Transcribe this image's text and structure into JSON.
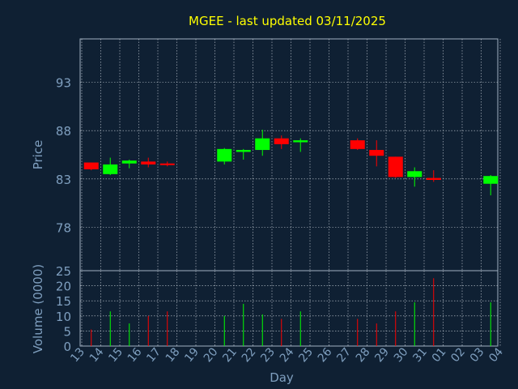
{
  "chart_data": {
    "type": "candlestick",
    "title": "MGEE - last updated 03/11/2025",
    "xlabel": "Day",
    "price_ylabel": "Price",
    "volume_ylabel": "Volume (0000)",
    "x_ticks": [
      "13",
      "14",
      "15",
      "16",
      "17",
      "18",
      "19",
      "20",
      "21",
      "22",
      "23",
      "24",
      "25",
      "26",
      "27",
      "28",
      "29",
      "30",
      "31",
      "01",
      "02",
      "03",
      "04"
    ],
    "price_ylim": [
      73.5,
      97.5
    ],
    "price_ticks": [
      78,
      83,
      88,
      93
    ],
    "volume_ylim": [
      0,
      25
    ],
    "volume_ticks": [
      0,
      5,
      10,
      15,
      20,
      25
    ],
    "grid": true,
    "candles": [
      {
        "day": "13",
        "open": 84.7,
        "close": 84.0,
        "high": 84.7,
        "low": 83.9,
        "volume": 5.5
      },
      {
        "day": "14",
        "open": 83.5,
        "close": 84.5,
        "high": 85.2,
        "low": 83.4,
        "volume": 11.5
      },
      {
        "day": "15",
        "open": 84.6,
        "close": 84.9,
        "high": 85.0,
        "low": 84.1,
        "volume": 7.5
      },
      {
        "day": "16",
        "open": 84.8,
        "close": 84.5,
        "high": 85.2,
        "low": 84.2,
        "volume": 10.0
      },
      {
        "day": "17",
        "open": 84.6,
        "close": 84.5,
        "high": 84.8,
        "low": 84.3,
        "volume": 11.5
      },
      {
        "day": "20",
        "open": 84.8,
        "close": 86.1,
        "high": 86.2,
        "low": 84.5,
        "volume": 10.0
      },
      {
        "day": "21",
        "open": 85.8,
        "close": 86.0,
        "high": 86.1,
        "low": 85.0,
        "volume": 14.0
      },
      {
        "day": "22",
        "open": 86.0,
        "close": 87.2,
        "high": 88.1,
        "low": 85.4,
        "volume": 10.5
      },
      {
        "day": "23",
        "open": 87.2,
        "close": 86.6,
        "high": 87.5,
        "low": 86.1,
        "volume": 9.0
      },
      {
        "day": "24",
        "open": 86.8,
        "close": 87.0,
        "high": 87.2,
        "low": 85.8,
        "volume": 11.5
      },
      {
        "day": "27",
        "open": 87.0,
        "close": 86.1,
        "high": 87.2,
        "low": 86.0,
        "volume": 9.0
      },
      {
        "day": "28",
        "open": 86.0,
        "close": 85.4,
        "high": 87.0,
        "low": 84.3,
        "volume": 7.5
      },
      {
        "day": "29",
        "open": 85.3,
        "close": 83.2,
        "high": 85.3,
        "low": 83.1,
        "volume": 11.5
      },
      {
        "day": "30",
        "open": 83.2,
        "close": 83.8,
        "high": 84.2,
        "low": 82.2,
        "volume": 14.5
      },
      {
        "day": "31",
        "open": 83.1,
        "close": 82.9,
        "high": 83.9,
        "low": 82.7,
        "volume": 22.5
      },
      {
        "day": "03",
        "open": 82.5,
        "close": 83.3,
        "high": 83.4,
        "low": 81.3,
        "volume": 14.5
      }
    ],
    "colors": {
      "background": "#0f2033",
      "title": "#ffff00",
      "axis_text": "#7f9fbf",
      "grid": "#c8d0d8",
      "axis_line": "#a0b0c0",
      "up": "#00ff00",
      "down": "#ff0000"
    }
  }
}
